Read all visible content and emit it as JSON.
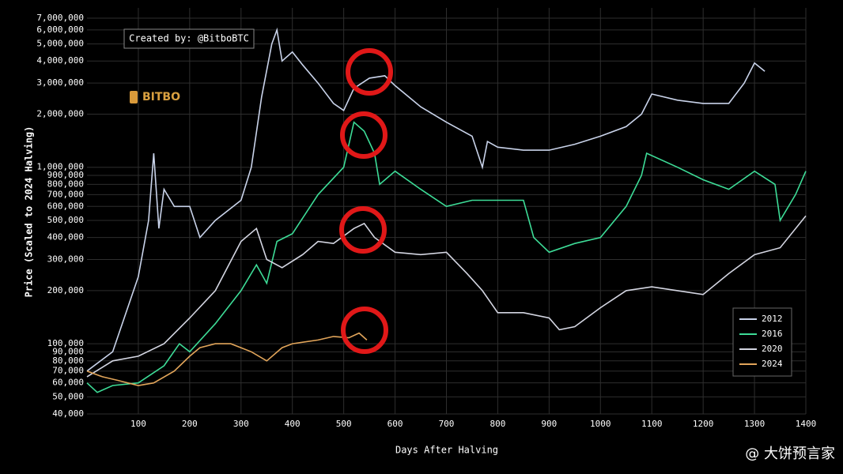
{
  "chart_data": {
    "type": "line",
    "log_scale": true,
    "grid": true,
    "legend": "lower right",
    "annotation": "Created by: @BitboBTC",
    "logo": "BITBO",
    "watermark": "@ 大饼预言家",
    "x_label": "Days After Halving",
    "y_label": "Price (Scaled to 2024 Halving)",
    "xlim": [
      0,
      1400
    ],
    "xticks": [
      100,
      200,
      300,
      400,
      500,
      600,
      700,
      800,
      900,
      1000,
      1100,
      1200,
      1300,
      1400
    ],
    "ylim": [
      40000,
      8000000
    ],
    "yticks": [
      {
        "value": 40000,
        "label": "40,000"
      },
      {
        "value": 50000,
        "label": "50,000"
      },
      {
        "value": 60000,
        "label": "60,000"
      },
      {
        "value": 70000,
        "label": "70,000"
      },
      {
        "value": 80000,
        "label": "80,000"
      },
      {
        "value": 90000,
        "label": "90,000"
      },
      {
        "value": 100000,
        "label": "100,000"
      },
      {
        "value": 200000,
        "label": "200,000"
      },
      {
        "value": 300000,
        "label": "300,000"
      },
      {
        "value": 400000,
        "label": "400,000"
      },
      {
        "value": 500000,
        "label": "500,000"
      },
      {
        "value": 600000,
        "label": "600,000"
      },
      {
        "value": 700000,
        "label": "700,000"
      },
      {
        "value": 800000,
        "label": "800,000"
      },
      {
        "value": 900000,
        "label": "900,000"
      },
      {
        "value": 1000000,
        "label": "1,000,000"
      },
      {
        "value": 2000000,
        "label": "2,000,000"
      },
      {
        "value": 3000000,
        "label": "3,000,000"
      },
      {
        "value": 4000000,
        "label": "4,000,000"
      },
      {
        "value": 5000000,
        "label": "5,000,000"
      },
      {
        "value": 6000000,
        "label": "6,000,000"
      },
      {
        "value": 7000000,
        "label": "7,000,000"
      }
    ],
    "series": [
      {
        "name": "2012",
        "color": "#c9d3ea",
        "x": [
          0,
          50,
          100,
          120,
          130,
          140,
          150,
          170,
          200,
          220,
          250,
          300,
          320,
          340,
          360,
          370,
          380,
          400,
          420,
          450,
          480,
          500,
          520,
          550,
          580,
          600,
          650,
          700,
          750,
          770,
          780,
          800,
          850,
          900,
          950,
          1000,
          1050,
          1080,
          1100,
          1150,
          1200,
          1250,
          1280,
          1300,
          1320
        ],
        "values": [
          70000,
          90000,
          240000,
          500000,
          1200000,
          450000,
          750000,
          600000,
          600000,
          400000,
          500000,
          650000,
          1000000,
          2500000,
          5000000,
          6000000,
          4000000,
          4500000,
          3800000,
          3000000,
          2300000,
          2100000,
          2800000,
          3200000,
          3300000,
          2900000,
          2200000,
          1800000,
          1500000,
          1000000,
          1400000,
          1300000,
          1250000,
          1250000,
          1350000,
          1500000,
          1700000,
          2000000,
          2600000,
          2400000,
          2300000,
          2300000,
          3000000,
          3900000,
          3500000
        ]
      },
      {
        "name": "2016",
        "color": "#3ddc97",
        "x": [
          0,
          20,
          50,
          100,
          150,
          180,
          200,
          250,
          300,
          330,
          350,
          370,
          400,
          450,
          500,
          520,
          540,
          560,
          570,
          600,
          650,
          700,
          750,
          800,
          850,
          870,
          900,
          950,
          1000,
          1050,
          1080,
          1090,
          1150,
          1200,
          1250,
          1300,
          1340,
          1350,
          1380,
          1400
        ],
        "values": [
          60000,
          53000,
          58000,
          60000,
          75000,
          100000,
          90000,
          130000,
          200000,
          280000,
          220000,
          380000,
          420000,
          700000,
          1000000,
          1800000,
          1600000,
          1200000,
          800000,
          950000,
          750000,
          600000,
          650000,
          650000,
          650000,
          400000,
          330000,
          370000,
          400000,
          600000,
          900000,
          1200000,
          1000000,
          850000,
          750000,
          950000,
          800000,
          500000,
          700000,
          950000
        ]
      },
      {
        "name": "2020",
        "color": "#d4d6e2",
        "x": [
          0,
          50,
          100,
          150,
          200,
          250,
          300,
          330,
          350,
          380,
          420,
          450,
          480,
          520,
          540,
          560,
          600,
          650,
          700,
          740,
          770,
          800,
          850,
          900,
          920,
          950,
          1000,
          1050,
          1100,
          1150,
          1200,
          1250,
          1300,
          1350,
          1400
        ],
        "values": [
          65000,
          80000,
          85000,
          100000,
          140000,
          200000,
          380000,
          450000,
          300000,
          270000,
          320000,
          380000,
          370000,
          450000,
          480000,
          400000,
          330000,
          320000,
          330000,
          250000,
          200000,
          150000,
          150000,
          140000,
          120000,
          125000,
          160000,
          200000,
          210000,
          200000,
          190000,
          250000,
          320000,
          350000,
          530000
        ]
      },
      {
        "name": "2024",
        "color": "#e2a55a",
        "x": [
          0,
          30,
          60,
          100,
          130,
          170,
          200,
          220,
          250,
          280,
          320,
          350,
          380,
          400,
          450,
          480,
          510,
          530,
          545
        ],
        "values": [
          70000,
          65000,
          62000,
          58000,
          60000,
          70000,
          85000,
          95000,
          100000,
          100000,
          90000,
          80000,
          95000,
          100000,
          105000,
          110000,
          108000,
          115000,
          105000
        ]
      }
    ]
  }
}
